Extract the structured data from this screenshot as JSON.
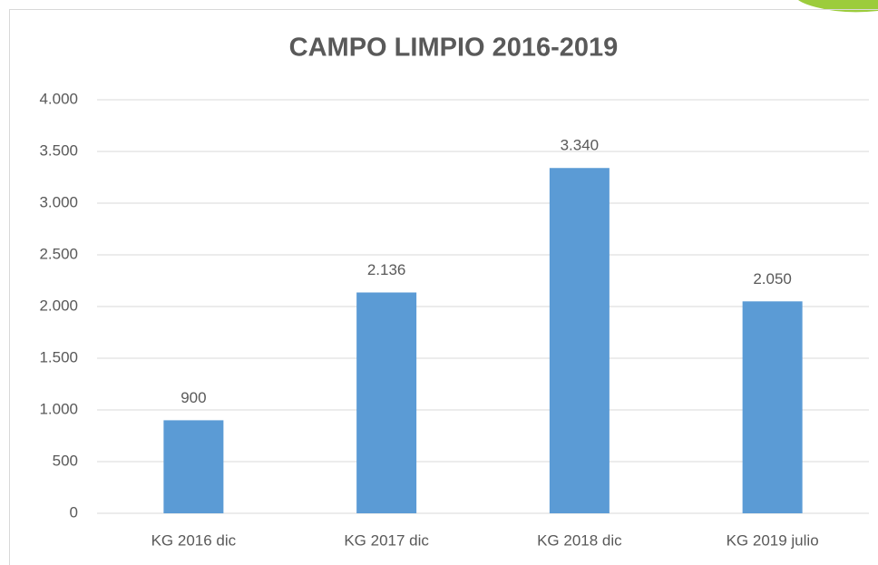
{
  "chart_data": {
    "type": "bar",
    "title": "CAMPO LIMPIO 2016-2019",
    "categories": [
      "KG 2016 dic",
      "KG 2017 dic",
      "KG 2018 dic",
      "KG 2019 julio"
    ],
    "values": [
      900,
      2136,
      3340,
      2050
    ],
    "value_labels": [
      "900",
      "2.136",
      "3.340",
      "2.050"
    ],
    "color": "#5b9bd5",
    "ylim": [
      0,
      4000
    ],
    "yticks": [
      0,
      500,
      {
        "value": 1000,
        "label": "1.000"
      },
      {
        "value": 1500,
        "label": "1.500"
      },
      {
        "value": 2000,
        "label": "2.000"
      },
      {
        "value": 2500,
        "label": "2.500"
      },
      {
        "value": 3000,
        "label": "3.000"
      },
      {
        "value": 3500,
        "label": "3.500"
      },
      {
        "value": 4000,
        "label": "4.000"
      }
    ],
    "grid": true
  }
}
